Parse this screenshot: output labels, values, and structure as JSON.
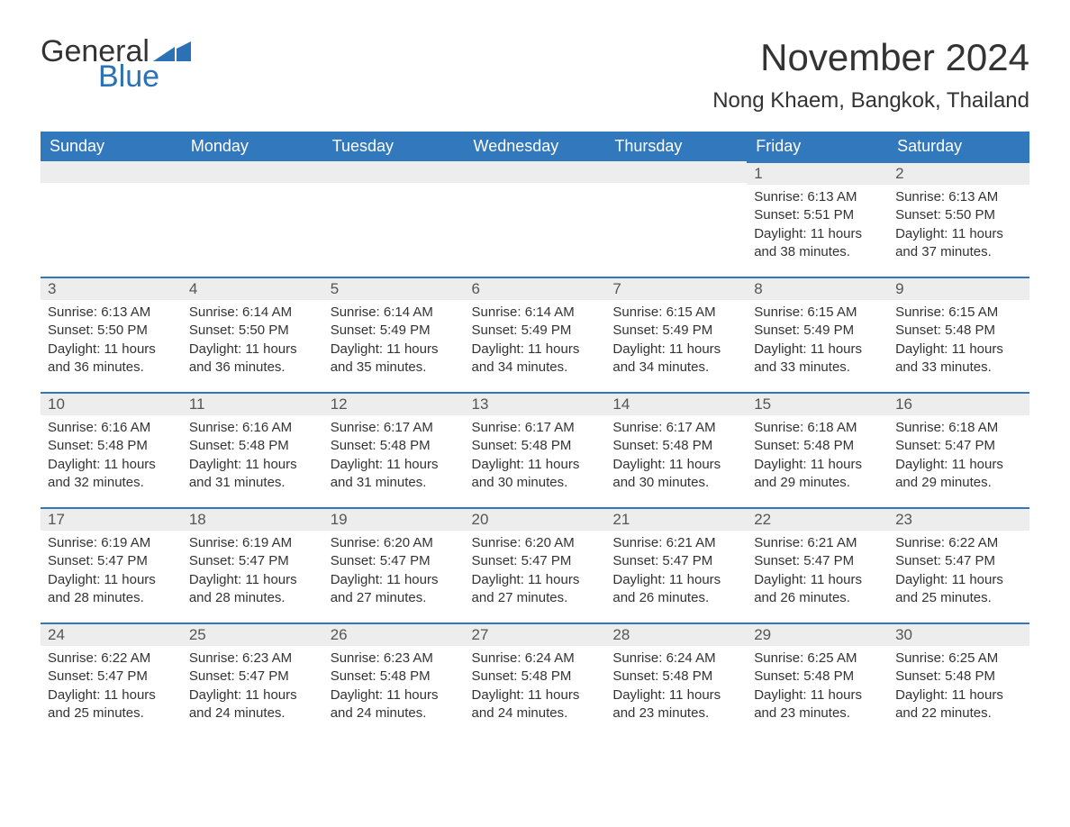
{
  "logo": {
    "text1": "General",
    "text2": "Blue",
    "shape_color": "#2a72b5"
  },
  "title": "November 2024",
  "location": "Nong Khaem, Bangkok, Thailand",
  "colors": {
    "header_bg": "#3178bd",
    "header_text": "#ffffff",
    "daybar_bg": "#ededed",
    "daybar_border": "#3178bd",
    "body_text": "#333333",
    "background": "#ffffff"
  },
  "typography": {
    "title_fontsize": 42,
    "location_fontsize": 24,
    "header_fontsize": 18,
    "daynum_fontsize": 17,
    "detail_fontsize": 15
  },
  "weekdays": [
    "Sunday",
    "Monday",
    "Tuesday",
    "Wednesday",
    "Thursday",
    "Friday",
    "Saturday"
  ],
  "weeks": [
    [
      null,
      null,
      null,
      null,
      null,
      {
        "day": "1",
        "sunrise": "Sunrise: 6:13 AM",
        "sunset": "Sunset: 5:51 PM",
        "daylight": "Daylight: 11 hours and 38 minutes."
      },
      {
        "day": "2",
        "sunrise": "Sunrise: 6:13 AM",
        "sunset": "Sunset: 5:50 PM",
        "daylight": "Daylight: 11 hours and 37 minutes."
      }
    ],
    [
      {
        "day": "3",
        "sunrise": "Sunrise: 6:13 AM",
        "sunset": "Sunset: 5:50 PM",
        "daylight": "Daylight: 11 hours and 36 minutes."
      },
      {
        "day": "4",
        "sunrise": "Sunrise: 6:14 AM",
        "sunset": "Sunset: 5:50 PM",
        "daylight": "Daylight: 11 hours and 36 minutes."
      },
      {
        "day": "5",
        "sunrise": "Sunrise: 6:14 AM",
        "sunset": "Sunset: 5:49 PM",
        "daylight": "Daylight: 11 hours and 35 minutes."
      },
      {
        "day": "6",
        "sunrise": "Sunrise: 6:14 AM",
        "sunset": "Sunset: 5:49 PM",
        "daylight": "Daylight: 11 hours and 34 minutes."
      },
      {
        "day": "7",
        "sunrise": "Sunrise: 6:15 AM",
        "sunset": "Sunset: 5:49 PM",
        "daylight": "Daylight: 11 hours and 34 minutes."
      },
      {
        "day": "8",
        "sunrise": "Sunrise: 6:15 AM",
        "sunset": "Sunset: 5:49 PM",
        "daylight": "Daylight: 11 hours and 33 minutes."
      },
      {
        "day": "9",
        "sunrise": "Sunrise: 6:15 AM",
        "sunset": "Sunset: 5:48 PM",
        "daylight": "Daylight: 11 hours and 33 minutes."
      }
    ],
    [
      {
        "day": "10",
        "sunrise": "Sunrise: 6:16 AM",
        "sunset": "Sunset: 5:48 PM",
        "daylight": "Daylight: 11 hours and 32 minutes."
      },
      {
        "day": "11",
        "sunrise": "Sunrise: 6:16 AM",
        "sunset": "Sunset: 5:48 PM",
        "daylight": "Daylight: 11 hours and 31 minutes."
      },
      {
        "day": "12",
        "sunrise": "Sunrise: 6:17 AM",
        "sunset": "Sunset: 5:48 PM",
        "daylight": "Daylight: 11 hours and 31 minutes."
      },
      {
        "day": "13",
        "sunrise": "Sunrise: 6:17 AM",
        "sunset": "Sunset: 5:48 PM",
        "daylight": "Daylight: 11 hours and 30 minutes."
      },
      {
        "day": "14",
        "sunrise": "Sunrise: 6:17 AM",
        "sunset": "Sunset: 5:48 PM",
        "daylight": "Daylight: 11 hours and 30 minutes."
      },
      {
        "day": "15",
        "sunrise": "Sunrise: 6:18 AM",
        "sunset": "Sunset: 5:48 PM",
        "daylight": "Daylight: 11 hours and 29 minutes."
      },
      {
        "day": "16",
        "sunrise": "Sunrise: 6:18 AM",
        "sunset": "Sunset: 5:47 PM",
        "daylight": "Daylight: 11 hours and 29 minutes."
      }
    ],
    [
      {
        "day": "17",
        "sunrise": "Sunrise: 6:19 AM",
        "sunset": "Sunset: 5:47 PM",
        "daylight": "Daylight: 11 hours and 28 minutes."
      },
      {
        "day": "18",
        "sunrise": "Sunrise: 6:19 AM",
        "sunset": "Sunset: 5:47 PM",
        "daylight": "Daylight: 11 hours and 28 minutes."
      },
      {
        "day": "19",
        "sunrise": "Sunrise: 6:20 AM",
        "sunset": "Sunset: 5:47 PM",
        "daylight": "Daylight: 11 hours and 27 minutes."
      },
      {
        "day": "20",
        "sunrise": "Sunrise: 6:20 AM",
        "sunset": "Sunset: 5:47 PM",
        "daylight": "Daylight: 11 hours and 27 minutes."
      },
      {
        "day": "21",
        "sunrise": "Sunrise: 6:21 AM",
        "sunset": "Sunset: 5:47 PM",
        "daylight": "Daylight: 11 hours and 26 minutes."
      },
      {
        "day": "22",
        "sunrise": "Sunrise: 6:21 AM",
        "sunset": "Sunset: 5:47 PM",
        "daylight": "Daylight: 11 hours and 26 minutes."
      },
      {
        "day": "23",
        "sunrise": "Sunrise: 6:22 AM",
        "sunset": "Sunset: 5:47 PM",
        "daylight": "Daylight: 11 hours and 25 minutes."
      }
    ],
    [
      {
        "day": "24",
        "sunrise": "Sunrise: 6:22 AM",
        "sunset": "Sunset: 5:47 PM",
        "daylight": "Daylight: 11 hours and 25 minutes."
      },
      {
        "day": "25",
        "sunrise": "Sunrise: 6:23 AM",
        "sunset": "Sunset: 5:47 PM",
        "daylight": "Daylight: 11 hours and 24 minutes."
      },
      {
        "day": "26",
        "sunrise": "Sunrise: 6:23 AM",
        "sunset": "Sunset: 5:48 PM",
        "daylight": "Daylight: 11 hours and 24 minutes."
      },
      {
        "day": "27",
        "sunrise": "Sunrise: 6:24 AM",
        "sunset": "Sunset: 5:48 PM",
        "daylight": "Daylight: 11 hours and 24 minutes."
      },
      {
        "day": "28",
        "sunrise": "Sunrise: 6:24 AM",
        "sunset": "Sunset: 5:48 PM",
        "daylight": "Daylight: 11 hours and 23 minutes."
      },
      {
        "day": "29",
        "sunrise": "Sunrise: 6:25 AM",
        "sunset": "Sunset: 5:48 PM",
        "daylight": "Daylight: 11 hours and 23 minutes."
      },
      {
        "day": "30",
        "sunrise": "Sunrise: 6:25 AM",
        "sunset": "Sunset: 5:48 PM",
        "daylight": "Daylight: 11 hours and 22 minutes."
      }
    ]
  ]
}
